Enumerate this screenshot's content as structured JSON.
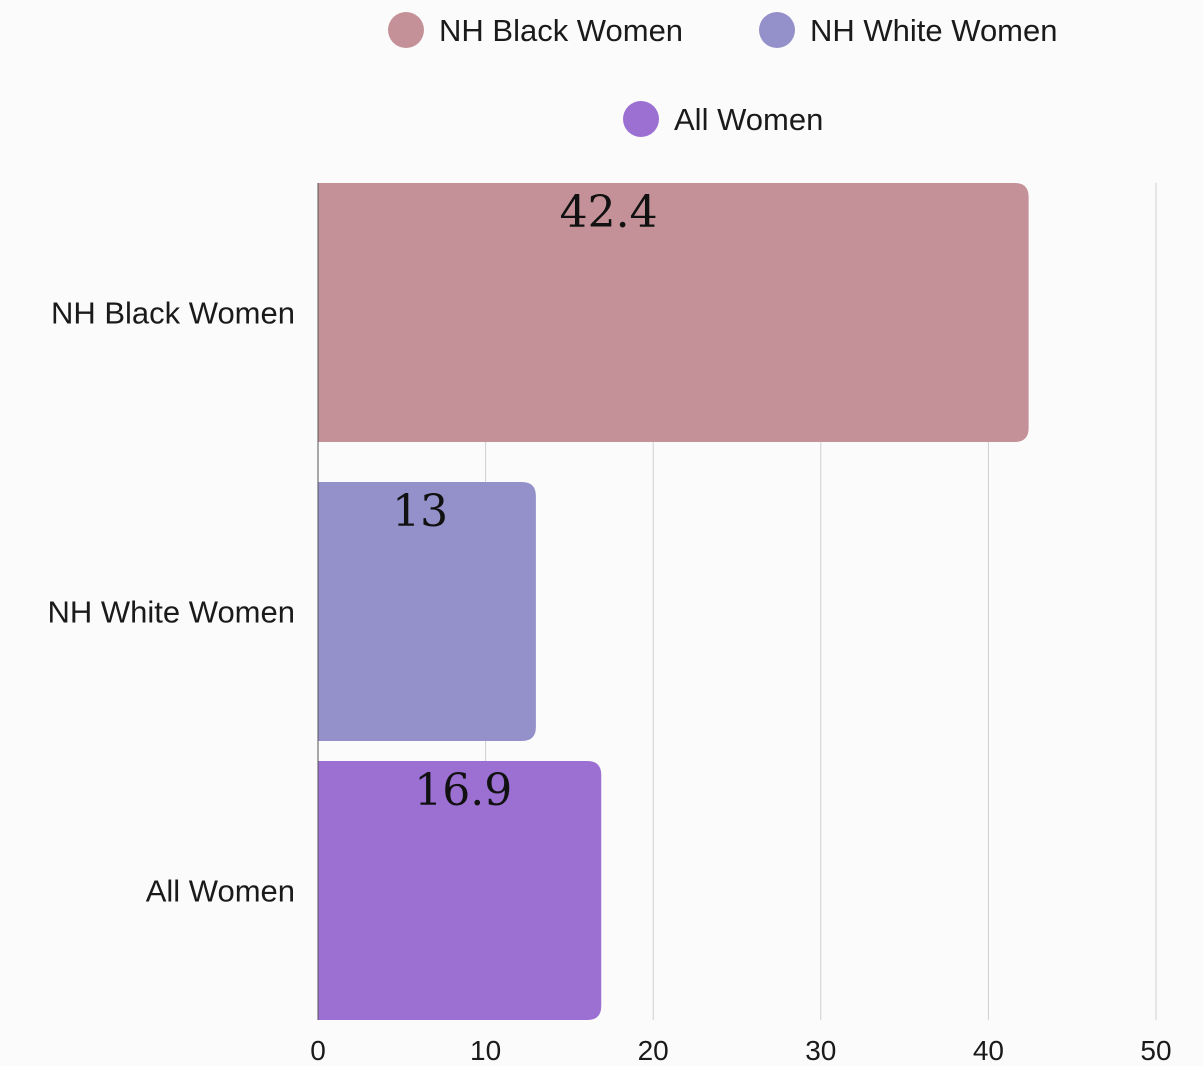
{
  "chart_data": {
    "type": "bar",
    "orientation": "horizontal",
    "categories": [
      "NH Black Women",
      "NH White Women",
      "All Women"
    ],
    "values": [
      42.4,
      13,
      16.9
    ],
    "value_labels": [
      "42.4",
      "13",
      "16.9"
    ],
    "colors": [
      "#c49198",
      "#9490ca",
      "#9b70d2"
    ],
    "legend": {
      "placement": "top",
      "items": [
        {
          "label": "NH Black Women",
          "color": "#c49198"
        },
        {
          "label": "NH White Women",
          "color": "#9490ca"
        },
        {
          "label": "All Women",
          "color": "#9b70d2"
        }
      ]
    },
    "xlim": [
      0,
      50
    ],
    "x_ticks": [
      "0",
      "10",
      "20",
      "30",
      "40",
      "50"
    ],
    "x_tick_values": [
      0,
      10,
      20,
      30,
      40,
      50
    ],
    "grid": true,
    "title": "",
    "xlabel": "",
    "ylabel": ""
  }
}
